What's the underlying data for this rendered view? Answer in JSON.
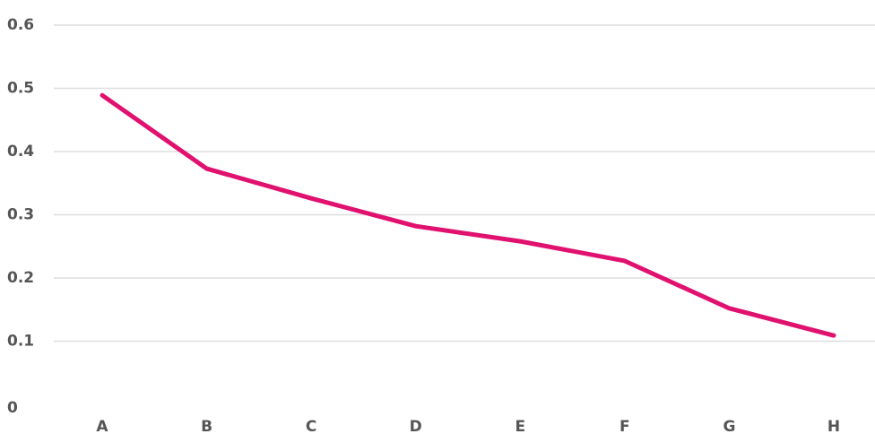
{
  "chart_data": {
    "type": "line",
    "categories": [
      "A",
      "B",
      "C",
      "D",
      "E",
      "F",
      "G",
      "H"
    ],
    "series": [
      {
        "name": null,
        "color": "#e0116f",
        "values": [
          0.489,
          0.373,
          0.326,
          0.282,
          0.258,
          0.227,
          0.152,
          0.109
        ]
      }
    ],
    "ylim": [
      0,
      0.6
    ],
    "yticks": [
      0,
      0.1,
      0.2,
      0.3,
      0.4,
      0.5,
      0.6
    ],
    "grid": true
  }
}
